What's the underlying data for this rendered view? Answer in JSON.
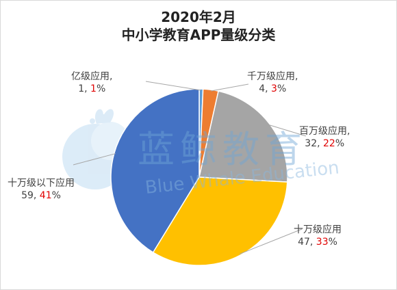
{
  "chart_data": {
    "type": "pie",
    "title": "2020年2月",
    "subtitle": "中小学教育APP量级分类",
    "slices": [
      {
        "label": "亿级应用,",
        "count": 1,
        "percent": 1,
        "color": "#5b9bd5"
      },
      {
        "label": "千万级应用,",
        "count": 4,
        "percent": 3,
        "color": "#ed7d31"
      },
      {
        "label": "百万级应用,",
        "count": 32,
        "percent": 22,
        "color": "#a5a5a5"
      },
      {
        "label": "十万级应用",
        "count": 47,
        "percent": 33,
        "color": "#ffc000"
      },
      {
        "label": "十万级以下应用",
        "count": 59,
        "percent": 41,
        "color": "#4472c4"
      }
    ]
  },
  "labels": {
    "yi": {
      "name": "亿级应用,",
      "count": "1, ",
      "pct": "1",
      "suffix": "%"
    },
    "qianwan": {
      "name": "千万级应用,",
      "count": "4, ",
      "pct": "3",
      "suffix": "%"
    },
    "baiwan": {
      "name": "百万级应用,",
      "count": "32, ",
      "pct": "22",
      "suffix": "%"
    },
    "shiwan": {
      "name": "十万级应用",
      "count": "47, ",
      "pct": "33",
      "suffix": "%"
    },
    "shiwan_below": {
      "name": "十万级以下应用",
      "count": "59, ",
      "pct": "41",
      "suffix": "%"
    }
  },
  "watermark": {
    "name": "蓝鲸教育",
    "english": "Blue Whale Education",
    "icon": "whale-logo-icon"
  }
}
